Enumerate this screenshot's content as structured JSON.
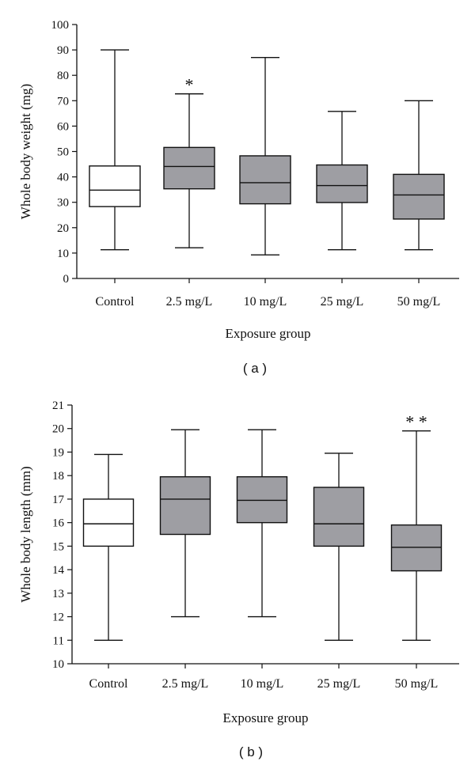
{
  "figure": {
    "panel_labels": [
      "( a )",
      "( b )"
    ]
  },
  "chart_data": [
    {
      "type": "box",
      "panel": "( a )",
      "xlabel": "Exposure group",
      "ylabel": "Whole body weight (mg)",
      "ylim": [
        0,
        100
      ],
      "yticks": [
        0,
        10,
        20,
        30,
        40,
        50,
        60,
        70,
        80,
        90,
        100
      ],
      "categories": [
        "Control",
        "2.5 mg/L",
        "10 mg/L",
        "25 mg/L",
        "50 mg/L"
      ],
      "boxes": [
        {
          "min": 11.3,
          "q1": 28.3,
          "median": 34.8,
          "q3": 44.3,
          "max": 90,
          "fill": "#ffffff",
          "sig": ""
        },
        {
          "min": 12.1,
          "q1": 35.3,
          "median": 44.1,
          "q3": 51.6,
          "max": 72.7,
          "fill": "#9e9ea3",
          "sig": "*"
        },
        {
          "min": 9.3,
          "q1": 29.4,
          "median": 37.7,
          "q3": 48.3,
          "max": 87,
          "fill": "#9e9ea3",
          "sig": ""
        },
        {
          "min": 11.3,
          "q1": 29.9,
          "median": 36.6,
          "q3": 44.7,
          "max": 65.8,
          "fill": "#9e9ea3",
          "sig": ""
        },
        {
          "min": 11.3,
          "q1": 23.4,
          "median": 32.9,
          "q3": 41.0,
          "max": 70,
          "fill": "#9e9ea3",
          "sig": ""
        }
      ]
    },
    {
      "type": "box",
      "panel": "( b )",
      "xlabel": "Exposure group",
      "ylabel": "Whole body length (mm)",
      "ylim": [
        10,
        21
      ],
      "yticks": [
        10,
        11,
        12,
        13,
        14,
        15,
        16,
        17,
        18,
        19,
        20,
        21
      ],
      "categories": [
        "Control",
        "2.5 mg/L",
        "10 mg/L",
        "25 mg/L",
        "50 mg/L"
      ],
      "boxes": [
        {
          "min": 11,
          "q1": 15,
          "median": 15.95,
          "q3": 17,
          "max": 18.9,
          "fill": "#ffffff",
          "sig": ""
        },
        {
          "min": 12,
          "q1": 15.5,
          "median": 17,
          "q3": 17.95,
          "max": 19.95,
          "fill": "#9e9ea3",
          "sig": ""
        },
        {
          "min": 12,
          "q1": 16,
          "median": 16.95,
          "q3": 17.95,
          "max": 19.95,
          "fill": "#9e9ea3",
          "sig": ""
        },
        {
          "min": 11,
          "q1": 15,
          "median": 15.95,
          "q3": 17.5,
          "max": 18.95,
          "fill": "#9e9ea3",
          "sig": ""
        },
        {
          "min": 11,
          "q1": 13.95,
          "median": 14.95,
          "q3": 15.9,
          "max": 19.9,
          "fill": "#9e9ea3",
          "sig": "* *"
        }
      ]
    }
  ]
}
